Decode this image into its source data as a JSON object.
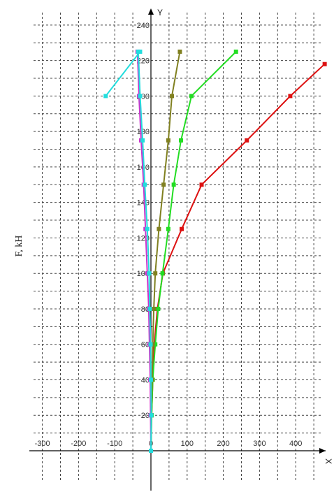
{
  "chart_data": {
    "type": "line",
    "title": "",
    "xlabel": "X",
    "ylabel": "F, kH",
    "y_axis_name": "Y",
    "xlim": [
      -320,
      480
    ],
    "ylim": [
      0,
      240
    ],
    "x_ticks": [
      "-300",
      "-200",
      "-100",
      "0",
      "100",
      "200",
      "300",
      "400"
    ],
    "y_ticks": [
      "20",
      "40",
      "60",
      "80",
      "100",
      "120",
      "140",
      "160",
      "180",
      "200",
      "220",
      "240"
    ],
    "grid": true,
    "legend": "none",
    "series": [
      {
        "color": "#dd1111",
        "points": [
          [
            0,
            0
          ],
          [
            2,
            20
          ],
          [
            5,
            40
          ],
          [
            9,
            60
          ],
          [
            18,
            80
          ],
          [
            33,
            100
          ],
          [
            85,
            125
          ],
          [
            140,
            150
          ],
          [
            265,
            175
          ],
          [
            385,
            200
          ],
          [
            480,
            218
          ]
        ]
      },
      {
        "color": "#22dd22",
        "points": [
          [
            0,
            0
          ],
          [
            2,
            20
          ],
          [
            5,
            40
          ],
          [
            12,
            60
          ],
          [
            20,
            80
          ],
          [
            32,
            100
          ],
          [
            48,
            125
          ],
          [
            63,
            150
          ],
          [
            83,
            175
          ],
          [
            112,
            200
          ],
          [
            235,
            225
          ]
        ]
      },
      {
        "color": "#808020",
        "points": [
          [
            0,
            0
          ],
          [
            1,
            20
          ],
          [
            3,
            40
          ],
          [
            5,
            60
          ],
          [
            8,
            80
          ],
          [
            12,
            100
          ],
          [
            22,
            125
          ],
          [
            35,
            150
          ],
          [
            48,
            175
          ],
          [
            58,
            200
          ],
          [
            80,
            225
          ]
        ]
      },
      {
        "color": "#cc33cc",
        "points": [
          [
            0,
            0
          ],
          [
            -1,
            20
          ],
          [
            -2,
            40
          ],
          [
            -4,
            60
          ],
          [
            -6,
            80
          ],
          [
            -10,
            100
          ],
          [
            -15,
            125
          ],
          [
            -20,
            150
          ],
          [
            -27,
            175
          ],
          [
            -33,
            200
          ],
          [
            -37,
            225
          ]
        ]
      },
      {
        "color": "#22dddd",
        "points": [
          [
            0,
            0
          ],
          [
            1,
            20
          ],
          [
            0,
            40
          ],
          [
            -1,
            60
          ],
          [
            -3,
            80
          ],
          [
            -5,
            100
          ],
          [
            -10,
            125
          ],
          [
            -17,
            150
          ],
          [
            -23,
            175
          ],
          [
            -30,
            200
          ],
          [
            -35,
            225
          ],
          [
            -30,
            225
          ],
          [
            -125,
            200
          ]
        ]
      }
    ]
  }
}
